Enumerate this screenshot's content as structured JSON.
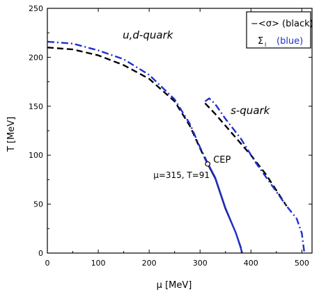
{
  "chart_data": {
    "type": "line",
    "xlabel": "μ [MeV]",
    "ylabel": "T [MeV]",
    "xlim": [
      0,
      520
    ],
    "ylim": [
      0,
      250
    ],
    "x_ticks": [
      0,
      100,
      200,
      300,
      400,
      500
    ],
    "y_ticks": [
      0,
      50,
      100,
      150,
      200,
      250
    ],
    "legend": {
      "position": "top-right",
      "entries": [
        {
          "label": "−<σ> (black)",
          "color": "#000000"
        },
        {
          "label_main": "Σ",
          "label_sub": "l",
          "label_tail": "(blue)",
          "color": "#1f2fd0"
        }
      ]
    },
    "annotations": {
      "ud_quark": "u,d-quark",
      "s_quark": "s-quark",
      "cep": "CEP",
      "cep_coords": "μ=315, T=91"
    },
    "cep_point": {
      "x": 315,
      "y": 91
    },
    "series": [
      {
        "name": "−<σ> (black)",
        "color": "#000000",
        "style": "dashed",
        "points": [
          [
            0,
            210
          ],
          [
            50,
            208
          ],
          [
            100,
            202
          ],
          [
            150,
            192
          ],
          [
            200,
            178
          ],
          [
            250,
            155
          ],
          [
            280,
            130
          ],
          [
            300,
            107
          ],
          [
            315,
            91
          ]
        ]
      },
      {
        "name": "Σ_l (blue)",
        "color": "#1f2fd0",
        "style": "dashdot",
        "points": [
          [
            0,
            216
          ],
          [
            50,
            214
          ],
          [
            100,
            207
          ],
          [
            150,
            198
          ],
          [
            200,
            182
          ],
          [
            250,
            157
          ],
          [
            280,
            132
          ],
          [
            300,
            108
          ],
          [
            315,
            92
          ]
        ]
      },
      {
        "name": "u,d-quark crossover (solid)",
        "color": "#000000",
        "style": "solid",
        "points": [
          [
            315,
            91
          ],
          [
            330,
            76
          ],
          [
            350,
            45
          ],
          [
            370,
            21
          ],
          [
            380,
            6
          ],
          [
            382,
            0
          ]
        ]
      },
      {
        "name": "u,d-quark crossover blue (solid)",
        "color": "#1f2fd0",
        "style": "solid",
        "points": [
          [
            315,
            92
          ],
          [
            330,
            77
          ],
          [
            350,
            46
          ],
          [
            370,
            21
          ],
          [
            380,
            5
          ],
          [
            383,
            0
          ]
        ]
      },
      {
        "name": "s-quark black",
        "color": "#000000",
        "style": "dashed",
        "points": [
          [
            310,
            153
          ],
          [
            330,
            142
          ],
          [
            360,
            124
          ],
          [
            400,
            100
          ],
          [
            430,
            80
          ],
          [
            460,
            56
          ],
          [
            470,
            48
          ]
        ]
      },
      {
        "name": "s-quark blue",
        "color": "#1f2fd0",
        "style": "dashdot",
        "points": [
          [
            310,
            155
          ],
          [
            318,
            158
          ],
          [
            330,
            152
          ],
          [
            350,
            137
          ],
          [
            380,
            117
          ],
          [
            410,
            92
          ],
          [
            440,
            70
          ],
          [
            470,
            48
          ],
          [
            490,
            35
          ],
          [
            500,
            20
          ],
          [
            505,
            0
          ]
        ]
      }
    ]
  }
}
